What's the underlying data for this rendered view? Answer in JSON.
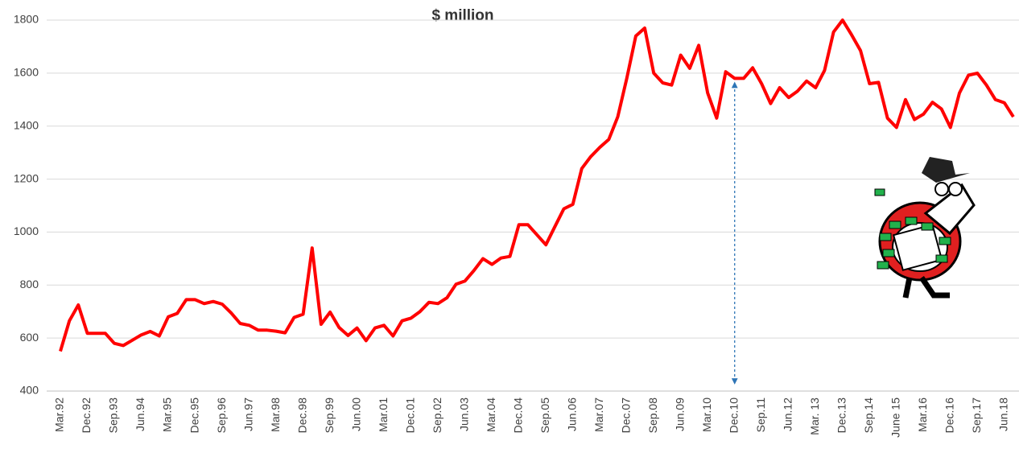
{
  "chart_data": {
    "type": "line",
    "title": "$ million",
    "categories": [
      "Mar.92",
      null,
      null,
      "Dec.92",
      null,
      null,
      "Sep.93",
      null,
      null,
      "Jun.94",
      null,
      null,
      "Mar.95",
      null,
      null,
      "Dec.95",
      null,
      null,
      "Sep.96",
      null,
      null,
      "Jun.97",
      null,
      null,
      "Mar.98",
      null,
      null,
      "Dec.98",
      null,
      null,
      "Sep.99",
      null,
      null,
      "Jun.00",
      null,
      null,
      "Mar.01",
      null,
      null,
      "Dec.01",
      null,
      null,
      "Sep.02",
      null,
      null,
      "Jun.03",
      null,
      null,
      "Mar.04",
      null,
      null,
      "Dec.04",
      null,
      null,
      "Sep.05",
      null,
      null,
      "Jun.06",
      null,
      null,
      "Mar.07",
      null,
      null,
      "Dec.07",
      null,
      null,
      "Sep.08",
      null,
      null,
      "Jun.09",
      null,
      null,
      "Mar.10",
      null,
      null,
      "Dec.10",
      null,
      null,
      "Sep.11",
      null,
      null,
      "Jun.12",
      null,
      null,
      "Mar. 13",
      null,
      null,
      "Dec.13",
      null,
      null,
      "Sep.14",
      null,
      null,
      "June 15",
      null,
      null,
      "Mar.16",
      null,
      null,
      "Dec.16",
      null,
      null,
      "Sep.17",
      null,
      null,
      "Jun.18",
      null
    ],
    "values": [
      550,
      665,
      725,
      618,
      618,
      618,
      580,
      572,
      592,
      612,
      625,
      608,
      680,
      693,
      745,
      745,
      730,
      738,
      728,
      695,
      655,
      648,
      630,
      630,
      626,
      620,
      678,
      690,
      940,
      652,
      698,
      640,
      610,
      638,
      590,
      638,
      648,
      608,
      665,
      675,
      700,
      735,
      730,
      752,
      803,
      815,
      855,
      900,
      878,
      902,
      908,
      1028,
      1028,
      990,
      952,
      1020,
      1088,
      1105,
      1240,
      1285,
      1320,
      1350,
      1435,
      1580,
      1740,
      1770,
      1600,
      1563,
      1555,
      1668,
      1618,
      1705,
      1525,
      1430,
      1605,
      1580,
      1580,
      1620,
      1560,
      1485,
      1545,
      1508,
      1532,
      1570,
      1545,
      1610,
      1755,
      1800,
      1745,
      1685,
      1560,
      1565,
      1430,
      1395,
      1500,
      1425,
      1445,
      1490,
      1465,
      1395,
      1525,
      1592,
      1600,
      1555,
      1500,
      1488,
      1435
    ],
    "color": "#ff0000",
    "ylim": [
      400,
      1800
    ],
    "yticks": [
      400,
      600,
      800,
      1000,
      1200,
      1400,
      1600,
      1800
    ],
    "grid": true
  }
}
